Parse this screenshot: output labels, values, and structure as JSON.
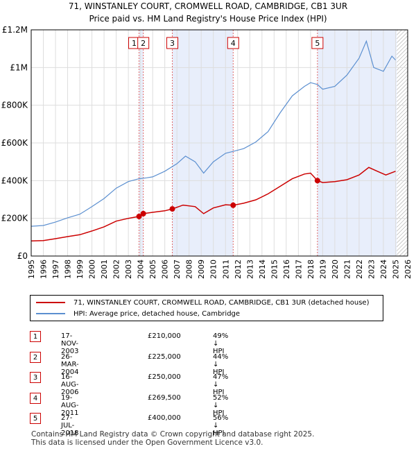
{
  "title_line1": "71, WINSTANLEY COURT, CROMWELL ROAD, CAMBRIDGE, CB1 3UR",
  "title_line2": "Price paid vs. HM Land Registry's House Price Index (HPI)",
  "chart_data": {
    "type": "line",
    "xlim": [
      1995,
      2026
    ],
    "ylim": [
      0,
      1200000
    ],
    "y_ticks": [
      0,
      200000,
      400000,
      600000,
      800000,
      1000000,
      1200000
    ],
    "y_tick_labels": [
      "£0",
      "£200K",
      "£400K",
      "£600K",
      "£800K",
      "£1M",
      "£1.2M"
    ],
    "x_ticks": [
      1995,
      1996,
      1997,
      1998,
      1999,
      2000,
      2001,
      2002,
      2003,
      2004,
      2005,
      2006,
      2007,
      2008,
      2009,
      2010,
      2011,
      2012,
      2013,
      2014,
      2015,
      2016,
      2017,
      2018,
      2019,
      2020,
      2021,
      2022,
      2023,
      2024,
      2025,
      2026
    ],
    "grid": true,
    "shaded_periods": [
      [
        2003.88,
        2004.23
      ],
      [
        2006.62,
        2011.63
      ],
      [
        2018.57,
        2025.1
      ]
    ],
    "future_hatch_from": 2025.1,
    "series": [
      {
        "name": "71, WINSTANLEY COURT, CROMWELL ROAD, CAMBRIDGE, CB1 3UR (detached house)",
        "color": "#cc0000",
        "points": [
          [
            1995.0,
            80000
          ],
          [
            1996.0,
            82000
          ],
          [
            1997.0,
            92000
          ],
          [
            1998.0,
            103000
          ],
          [
            1999.0,
            113000
          ],
          [
            2000.0,
            133000
          ],
          [
            2001.0,
            155000
          ],
          [
            2002.0,
            185000
          ],
          [
            2003.0,
            200000
          ],
          [
            2003.88,
            210000
          ],
          [
            2004.23,
            225000
          ],
          [
            2005.0,
            232000
          ],
          [
            2006.0,
            240000
          ],
          [
            2006.62,
            250000
          ],
          [
            2007.5,
            270000
          ],
          [
            2008.5,
            262000
          ],
          [
            2009.2,
            225000
          ],
          [
            2010.0,
            255000
          ],
          [
            2011.0,
            272000
          ],
          [
            2011.63,
            269500
          ],
          [
            2012.5,
            280000
          ],
          [
            2013.5,
            298000
          ],
          [
            2014.5,
            330000
          ],
          [
            2015.5,
            370000
          ],
          [
            2016.5,
            410000
          ],
          [
            2017.5,
            435000
          ],
          [
            2018.0,
            440000
          ],
          [
            2018.57,
            400000
          ],
          [
            2019.0,
            390000
          ],
          [
            2020.0,
            395000
          ],
          [
            2021.0,
            405000
          ],
          [
            2022.0,
            430000
          ],
          [
            2022.8,
            470000
          ],
          [
            2023.5,
            450000
          ],
          [
            2024.2,
            430000
          ],
          [
            2025.0,
            450000
          ]
        ]
      },
      {
        "name": "HPI: Average price, detached house, Cambridge",
        "color": "#5b8fd0",
        "points": [
          [
            1995.0,
            158000
          ],
          [
            1996.0,
            162000
          ],
          [
            1997.0,
            180000
          ],
          [
            1998.0,
            203000
          ],
          [
            1999.0,
            222000
          ],
          [
            2000.0,
            262000
          ],
          [
            2001.0,
            305000
          ],
          [
            2002.0,
            360000
          ],
          [
            2003.0,
            395000
          ],
          [
            2003.88,
            410000
          ],
          [
            2004.5,
            415000
          ],
          [
            2005.0,
            420000
          ],
          [
            2006.0,
            450000
          ],
          [
            2007.0,
            490000
          ],
          [
            2007.7,
            530000
          ],
          [
            2008.5,
            500000
          ],
          [
            2009.2,
            440000
          ],
          [
            2010.0,
            500000
          ],
          [
            2011.0,
            545000
          ],
          [
            2011.63,
            555000
          ],
          [
            2012.5,
            570000
          ],
          [
            2013.5,
            605000
          ],
          [
            2014.5,
            660000
          ],
          [
            2015.5,
            760000
          ],
          [
            2016.5,
            850000
          ],
          [
            2017.5,
            900000
          ],
          [
            2018.0,
            920000
          ],
          [
            2018.57,
            910000
          ],
          [
            2019.0,
            885000
          ],
          [
            2020.0,
            900000
          ],
          [
            2021.0,
            960000
          ],
          [
            2022.0,
            1050000
          ],
          [
            2022.6,
            1140000
          ],
          [
            2023.2,
            1000000
          ],
          [
            2024.0,
            980000
          ],
          [
            2024.7,
            1060000
          ],
          [
            2025.0,
            1040000
          ]
        ]
      }
    ],
    "transactions": [
      {
        "label": "1",
        "x": 2003.88,
        "price": 210000
      },
      {
        "label": "2",
        "x": 2004.23,
        "price": 225000
      },
      {
        "label": "3",
        "x": 2006.62,
        "price": 250000
      },
      {
        "label": "4",
        "x": 2011.63,
        "price": 269500
      },
      {
        "label": "5",
        "x": 2018.57,
        "price": 400000
      }
    ]
  },
  "legend": {
    "property": "71, WINSTANLEY COURT, CROMWELL ROAD, CAMBRIDGE, CB1 3UR (detached house)",
    "hpi": "HPI: Average price, detached house, Cambridge"
  },
  "rows": [
    {
      "num": "1",
      "date": "17-NOV-2003",
      "price": "£210,000",
      "hpi": "49% ↓ HPI"
    },
    {
      "num": "2",
      "date": "26-MAR-2004",
      "price": "£225,000",
      "hpi": "44% ↓ HPI"
    },
    {
      "num": "3",
      "date": "16-AUG-2006",
      "price": "£250,000",
      "hpi": "47% ↓ HPI"
    },
    {
      "num": "4",
      "date": "19-AUG-2011",
      "price": "£269,500",
      "hpi": "52% ↓ HPI"
    },
    {
      "num": "5",
      "date": "27-JUL-2018",
      "price": "£400,000",
      "hpi": "56% ↓ HPI"
    }
  ],
  "footer": {
    "line1": "Contains HM Land Registry data © Crown copyright and database right 2025.",
    "line2": "This data is licensed under the Open Government Licence v3.0."
  }
}
